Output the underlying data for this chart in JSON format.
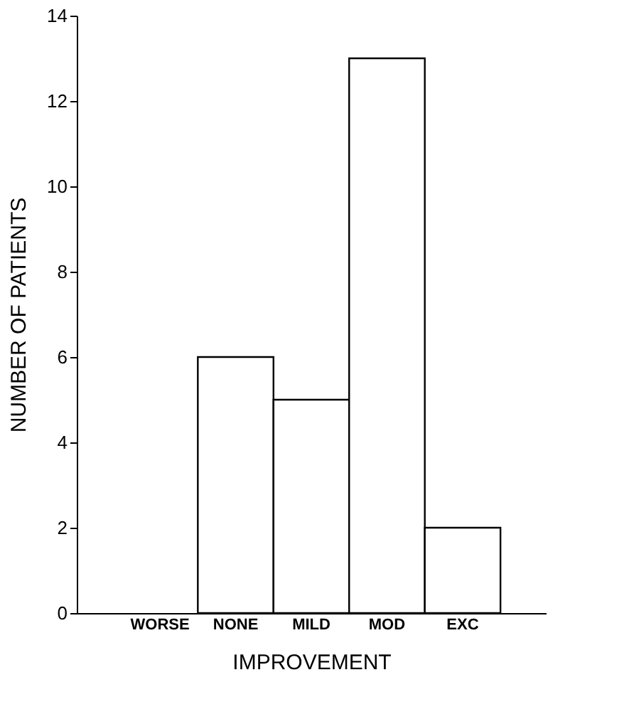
{
  "chart_data": {
    "type": "bar",
    "xlabel": "IMPROVEMENT",
    "ylabel": "NUMBER OF PATIENTS",
    "categories": [
      "WORSE",
      "NONE",
      "MILD",
      "MOD",
      "EXC"
    ],
    "values": [
      0,
      6,
      5,
      13,
      2
    ],
    "colors": [
      "#ffffff",
      "#ffffff",
      "#ffffff",
      "#ffffff",
      "#ffffff"
    ],
    "ylim": [
      0,
      14
    ],
    "yticks": [
      0,
      2,
      4,
      6,
      8,
      10,
      12,
      14
    ],
    "grid": false
  }
}
